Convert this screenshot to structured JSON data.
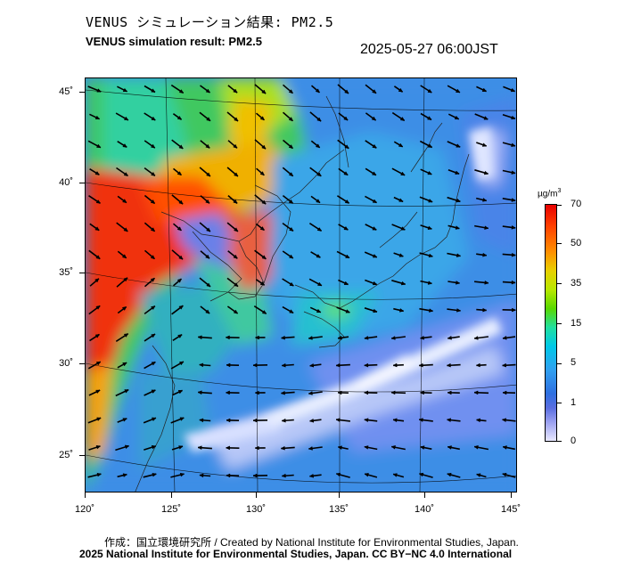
{
  "title_ja": "VENUS シミュレーション結果: PM2.5",
  "title_en": "VENUS simulation result: PM2.5",
  "timestamp": "2025-05-27 06:00JST",
  "map": {
    "lat_labels": [
      "45˚",
      "40˚",
      "35˚",
      "30˚",
      "25˚"
    ],
    "lon_labels": [
      "120˚",
      "125˚",
      "130˚",
      "135˚",
      "140˚",
      "145˚"
    ]
  },
  "colorbar": {
    "unit_base": "µg/m",
    "unit_exp": "3",
    "labels": [
      "70",
      "50",
      "35",
      "15",
      "5",
      "1",
      "0"
    ]
  },
  "credits": {
    "line1": "作成：国立環境研究所 / Created by National Institute for Environmental Studies, Japan.",
    "line2": "2025 National Institute for Environmental Studies, Japan. CC BY−NC 4.0 International"
  }
}
